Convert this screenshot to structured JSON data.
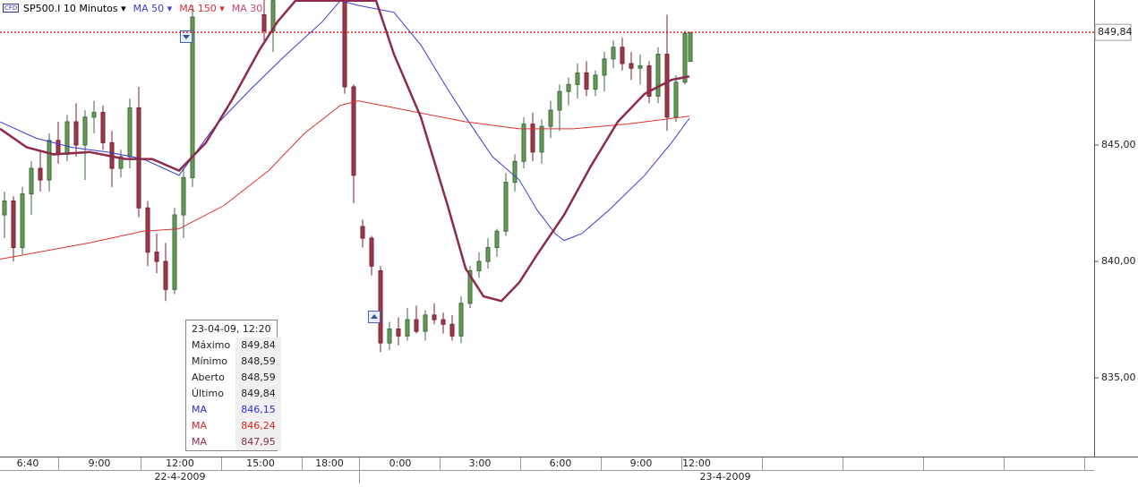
{
  "chart_data": {
    "type": "candlestick",
    "title": "SP500.I 10 Minutos",
    "xlim": [
      0,
      244.4
    ],
    "ylim": [
      831.62,
      851.23
    ],
    "yticks": [
      {
        "value": 835,
        "label": "835,00"
      },
      {
        "value": 840,
        "label": "840,00"
      },
      {
        "value": 845,
        "label": "845,00"
      }
    ],
    "xticks": [
      {
        "value": 6.2,
        "label": "6:40"
      },
      {
        "value": 22.2,
        "label": "9:00"
      },
      {
        "value": 40.2,
        "label": "12:00"
      },
      {
        "value": 58.2,
        "label": "15:00"
      },
      {
        "value": 73.6,
        "label": "18:00"
      },
      {
        "value": 89.4,
        "label": "0:00"
      },
      {
        "value": 107.2,
        "label": "3:00"
      },
      {
        "value": 125.2,
        "label": "6:00"
      },
      {
        "value": 143.2,
        "label": "9:00"
      },
      {
        "value": 155.6,
        "label": "12:00"
      }
    ],
    "date_ticks": [
      {
        "value": 40.2,
        "label": "22-4-2009"
      },
      {
        "value": 162,
        "label": "23-4-2009"
      }
    ],
    "last_price": {
      "value": 849.84,
      "label": "849,84",
      "color": "#cc0000"
    },
    "up_color": "#3a6b3a",
    "down_color": "#7a1f2f",
    "candles": {
      "x": [
        1,
        3,
        5,
        7,
        9,
        11,
        13,
        15,
        17,
        19,
        21,
        23,
        25,
        27,
        29,
        31,
        33,
        35,
        37,
        39,
        41,
        43,
        59,
        61,
        77,
        79,
        81,
        83,
        85,
        87,
        89,
        91,
        93,
        95,
        97,
        99,
        101,
        103,
        105,
        107,
        109,
        111,
        113,
        115,
        117,
        119,
        121,
        123,
        125,
        127,
        129,
        131,
        133,
        135,
        137,
        139,
        141,
        143,
        145,
        147,
        149,
        151,
        153,
        154.2
      ],
      "open": [
        842.0,
        842.6,
        840.6,
        842.9,
        844.0,
        843.5,
        845.2,
        844.6,
        846.0,
        845.0,
        846.2,
        846.4,
        845.1,
        844.0,
        844.5,
        846.6,
        842.3,
        840.4,
        840.0,
        838.8,
        842.0,
        843.6,
        850.6,
        849.9,
        851.4,
        847.5,
        841.5,
        841.0,
        839.6,
        836.5,
        837.1,
        836.8,
        837.5,
        837.0,
        837.7,
        837.5,
        837.3,
        836.8,
        838.2,
        839.6,
        840.0,
        840.6,
        841.3,
        843.4,
        844.3,
        845.9,
        844.7,
        845.8,
        846.5,
        847.3,
        847.6,
        848.1,
        847.4,
        848.0,
        848.7,
        849.2,
        848.5,
        848.3,
        848.4,
        847.1,
        848.9,
        846.2,
        847.7,
        848.59
      ],
      "high": [
        843.0,
        842.8,
        843.2,
        844.3,
        844.8,
        845.5,
        846.0,
        846.3,
        846.8,
        846.5,
        846.9,
        846.7,
        845.6,
        844.8,
        847.0,
        847.5,
        842.6,
        841.2,
        840.8,
        842.3,
        844.0,
        851.0,
        851.6,
        851.5,
        851.6,
        847.6,
        841.8,
        841.1,
        839.8,
        837.4,
        837.6,
        838.0,
        838.1,
        837.9,
        838.2,
        837.8,
        837.7,
        838.5,
        839.8,
        840.4,
        841.0,
        841.4,
        843.8,
        844.6,
        846.2,
        846.4,
        846.1,
        846.9,
        847.6,
        847.9,
        848.5,
        848.6,
        848.2,
        849.0,
        849.5,
        849.6,
        849.0,
        848.9,
        848.6,
        849.2,
        850.6,
        848.0,
        849.9,
        849.84
      ],
      "low": [
        841.0,
        840.0,
        840.3,
        842.0,
        843.0,
        843.0,
        844.2,
        844.3,
        844.5,
        843.5,
        845.5,
        844.8,
        843.2,
        843.6,
        844.0,
        841.9,
        839.8,
        839.5,
        838.3,
        838.6,
        841.0,
        843.2,
        849.5,
        849.0,
        847.2,
        842.5,
        840.6,
        839.4,
        836.1,
        836.2,
        836.4,
        836.6,
        836.9,
        836.6,
        837.3,
        836.9,
        836.6,
        836.5,
        838.0,
        839.3,
        839.7,
        840.2,
        841.1,
        843.0,
        844.0,
        844.3,
        844.2,
        845.3,
        845.6,
        846.7,
        847.0,
        847.1,
        847.1,
        847.3,
        848.3,
        848.2,
        847.8,
        847.6,
        846.8,
        846.8,
        845.6,
        846.0,
        847.6,
        848.59
      ],
      "close": [
        842.6,
        840.6,
        842.9,
        844.0,
        843.5,
        845.2,
        844.6,
        846.0,
        845.0,
        846.2,
        846.4,
        845.1,
        844.0,
        844.5,
        846.6,
        842.3,
        840.4,
        840.0,
        838.8,
        842.0,
        843.6,
        850.5,
        849.9,
        851.2,
        847.5,
        843.7,
        841.0,
        839.8,
        836.5,
        837.1,
        836.8,
        837.5,
        837.0,
        837.7,
        837.5,
        837.3,
        836.8,
        838.2,
        839.6,
        840.0,
        840.6,
        841.3,
        843.4,
        844.3,
        845.9,
        844.7,
        845.8,
        846.5,
        847.3,
        847.6,
        848.1,
        847.4,
        848.0,
        848.7,
        849.2,
        848.5,
        848.3,
        848.4,
        847.1,
        848.9,
        846.2,
        847.7,
        849.8,
        849.84
      ]
    },
    "series": [
      {
        "name": "MA 50",
        "color": "#3a3ad8",
        "width": 1,
        "x": [
          0,
          8,
          16,
          24,
          32,
          40,
          48,
          56,
          64,
          72,
          76,
          80,
          88,
          94,
          100,
          104,
          110,
          116,
          120,
          124,
          126,
          130,
          136,
          144,
          150,
          154
        ],
        "values": [
          846.0,
          845.3,
          844.9,
          844.7,
          844.4,
          843.7,
          845.8,
          847.4,
          848.9,
          850.3,
          851.2,
          851.0,
          850.7,
          849.3,
          847.4,
          846.2,
          844.5,
          843.5,
          842.2,
          841.2,
          840.9,
          841.2,
          842.2,
          843.7,
          845.1,
          846.15
        ]
      },
      {
        "name": "MA 150",
        "color": "#e03030",
        "width": 1,
        "x": [
          0,
          20,
          32,
          40,
          50,
          60,
          68,
          76,
          80,
          88,
          96,
          104,
          116,
          128,
          140,
          154
        ],
        "values": [
          840.1,
          840.8,
          841.3,
          841.4,
          842.4,
          843.9,
          845.5,
          846.7,
          846.9,
          846.6,
          846.3,
          846.0,
          845.7,
          845.7,
          845.9,
          846.24
        ]
      },
      {
        "name": "MA 30",
        "color": "#8e2a4a",
        "width": 2.5,
        "x": [
          0,
          6,
          12,
          20,
          28,
          34,
          40,
          46,
          52,
          58,
          62,
          66,
          84,
          88,
          94,
          100,
          104,
          108,
          112,
          116,
          120,
          126,
          132,
          138,
          144,
          150,
          154
        ],
        "values": [
          845.7,
          844.9,
          844.6,
          844.7,
          844.4,
          844.4,
          843.9,
          845.1,
          847.0,
          849.1,
          850.3,
          851.2,
          851.2,
          848.9,
          846.2,
          842.4,
          839.7,
          838.5,
          838.3,
          839.1,
          840.3,
          842.0,
          844.1,
          846.0,
          847.2,
          847.8,
          847.95
        ]
      }
    ],
    "info_box": {
      "title": "23-04-09, 12:20",
      "rows": [
        [
          "Máximo",
          "849,84"
        ],
        [
          "Mínimo",
          "848,59"
        ],
        [
          "Aberto",
          "848,59"
        ],
        [
          "Último",
          "849,84"
        ],
        [
          "MA",
          "846,15"
        ],
        [
          "MA",
          "846,24"
        ],
        [
          "MA",
          "847,95"
        ]
      ]
    }
  }
}
